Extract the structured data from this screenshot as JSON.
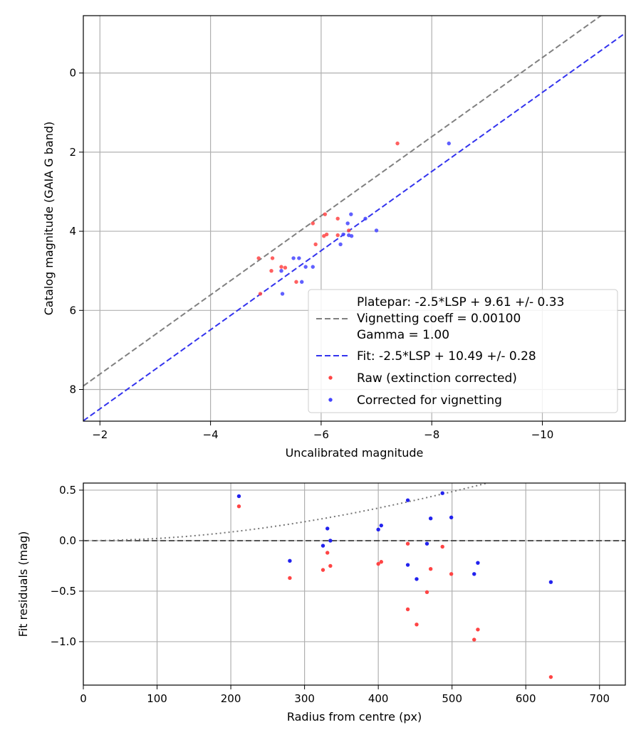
{
  "chart_data": [
    {
      "type": "scatter",
      "xlabel": "Uncalibrated magnitude",
      "ylabel": "Catalog magnitude (GAIA G band)",
      "xlim": [
        -1.7,
        -11.5
      ],
      "ylim": [
        8.8,
        -1.45
      ],
      "x_inverted": true,
      "y_inverted": true,
      "xticks": [
        -2,
        -4,
        -6,
        -8,
        -10
      ],
      "xtick_labels": [
        "−2",
        "−4",
        "−6",
        "−8",
        "−10"
      ],
      "yticks": [
        0,
        2,
        4,
        6,
        8
      ],
      "ytick_labels": [
        "0",
        "2",
        "4",
        "6",
        "8"
      ],
      "grid": true,
      "legend_position": "lower-right",
      "legend": {
        "platepar_lines": [
          "Platepar: -2.5*LSP + 9.61 +/- 0.33",
          "Vignetting coeff = 0.00100",
          "Gamma = 1.00"
        ],
        "fit": "Fit: -2.5*LSP + 10.49 +/- 0.28",
        "raw": "Raw (extinction corrected)",
        "corrected": "Corrected for vignetting"
      },
      "lines": [
        {
          "name": "Platepar",
          "color": "#808080",
          "style": "dashed",
          "intercept": 9.61,
          "slope": 1.0
        },
        {
          "name": "Fit",
          "color": "#3333ee",
          "style": "dashed",
          "intercept": 10.49,
          "slope": 1.0
        }
      ],
      "series": [
        {
          "name": "Raw (extinction corrected)",
          "color": "#ff4444",
          "points": [
            [
              -7.38,
              1.78
            ],
            [
              -6.07,
              3.57
            ],
            [
              -6.3,
              3.68
            ],
            [
              -5.85,
              3.8
            ],
            [
              -6.5,
              3.98
            ],
            [
              -6.1,
              4.08
            ],
            [
              -6.3,
              4.1
            ],
            [
              -6.05,
              4.12
            ],
            [
              -5.9,
              4.33
            ],
            [
              -4.87,
              4.68
            ],
            [
              -5.12,
              4.68
            ],
            [
              -5.28,
              4.9
            ],
            [
              -5.35,
              4.92
            ],
            [
              -5.1,
              5.0
            ],
            [
              -5.55,
              5.28
            ],
            [
              -4.9,
              5.58
            ]
          ]
        },
        {
          "name": "Corrected for vignetting",
          "color": "#4444ff",
          "points": [
            [
              -8.31,
              1.78
            ],
            [
              -6.54,
              3.57
            ],
            [
              -6.8,
              3.68
            ],
            [
              -6.48,
              3.8
            ],
            [
              -7.0,
              3.98
            ],
            [
              -6.4,
              4.08
            ],
            [
              -6.5,
              4.1
            ],
            [
              -6.55,
              4.12
            ],
            [
              -6.35,
              4.33
            ],
            [
              -5.5,
              4.68
            ],
            [
              -5.6,
              4.68
            ],
            [
              -5.72,
              4.9
            ],
            [
              -5.85,
              4.9
            ],
            [
              -5.28,
              5.0
            ],
            [
              -5.65,
              5.28
            ],
            [
              -5.3,
              5.58
            ]
          ]
        }
      ]
    },
    {
      "type": "scatter",
      "xlabel": "Radius from centre (px)",
      "ylabel": "Fit residuals (mag)",
      "xlim": [
        0,
        735
      ],
      "ylim": [
        -1.43,
        0.57
      ],
      "xticks": [
        0,
        100,
        200,
        300,
        400,
        500,
        600,
        700
      ],
      "xtick_labels": [
        "0",
        "100",
        "200",
        "300",
        "400",
        "500",
        "600",
        "700"
      ],
      "yticks": [
        0.5,
        0.0,
        -0.5,
        -1.0
      ],
      "ytick_labels": [
        "0.5",
        "0.0",
        "−0.5",
        "−1.0"
      ],
      "grid": true,
      "reference_line": {
        "y": 0,
        "color": "#555555",
        "style": "dashed"
      },
      "vignetting_curve": {
        "coeff": 0.001,
        "color": "#777777",
        "style": "dotted"
      },
      "series": [
        {
          "name": "Raw (extinction corrected)",
          "color": "#ff4444",
          "points": [
            [
              211,
              0.34
            ],
            [
              280,
              -0.37
            ],
            [
              325,
              -0.29
            ],
            [
              331,
              -0.12
            ],
            [
              335,
              -0.25
            ],
            [
              400,
              -0.23
            ],
            [
              404,
              -0.21
            ],
            [
              440,
              -0.03
            ],
            [
              440,
              -0.68
            ],
            [
              452,
              -0.83
            ],
            [
              466,
              -0.51
            ],
            [
              471,
              -0.28
            ],
            [
              487,
              -0.06
            ],
            [
              499,
              -0.33
            ],
            [
              530,
              -0.98
            ],
            [
              535,
              -0.88
            ],
            [
              634,
              -1.35
            ]
          ]
        },
        {
          "name": "Corrected for vignetting",
          "color": "#2222ee",
          "points": [
            [
              211,
              0.44
            ],
            [
              280,
              -0.2
            ],
            [
              325,
              -0.05
            ],
            [
              331,
              0.12
            ],
            [
              335,
              0.0
            ],
            [
              400,
              0.11
            ],
            [
              404,
              0.15
            ],
            [
              440,
              0.4
            ],
            [
              440,
              -0.24
            ],
            [
              452,
              -0.38
            ],
            [
              466,
              -0.03
            ],
            [
              471,
              0.22
            ],
            [
              487,
              0.47
            ],
            [
              499,
              0.23
            ],
            [
              530,
              -0.33
            ],
            [
              535,
              -0.22
            ],
            [
              634,
              -0.41
            ]
          ]
        }
      ]
    }
  ]
}
